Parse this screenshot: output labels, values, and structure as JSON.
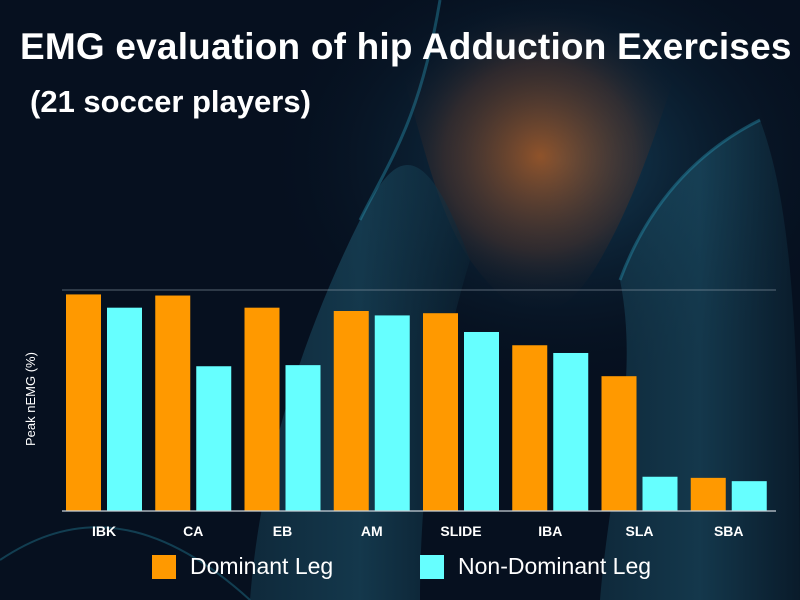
{
  "title": "EMG evaluation of hip Adduction Exercises",
  "subtitle": "(21 soccer players)",
  "colors": {
    "dominant": "#ff9900",
    "non_dominant": "#66ffff",
    "background": "#06101f"
  },
  "chart_data": {
    "type": "bar",
    "title": "EMG evaluation of hip Adduction Exercises",
    "subtitle": "(21 soccer players)",
    "xlabel": "",
    "ylabel": "Peak nEMG (%)",
    "categories": [
      "IBK",
      "CA",
      "EB",
      "AM",
      "SLIDE",
      "IBA",
      "SLA",
      "SBA"
    ],
    "series": [
      {
        "name": "Dominant Leg",
        "color": "#ff9900",
        "values": [
          98,
          97.5,
          92,
          90.5,
          89.5,
          75,
          61,
          15
        ]
      },
      {
        "name": "Non-Dominant Leg",
        "color": "#66ffff",
        "values": [
          92,
          65.5,
          66,
          88.5,
          81,
          71.5,
          15.5,
          13.5
        ]
      }
    ],
    "ylim": [
      0,
      100
    ],
    "gridlines": [
      100
    ],
    "legend_position": "bottom"
  }
}
